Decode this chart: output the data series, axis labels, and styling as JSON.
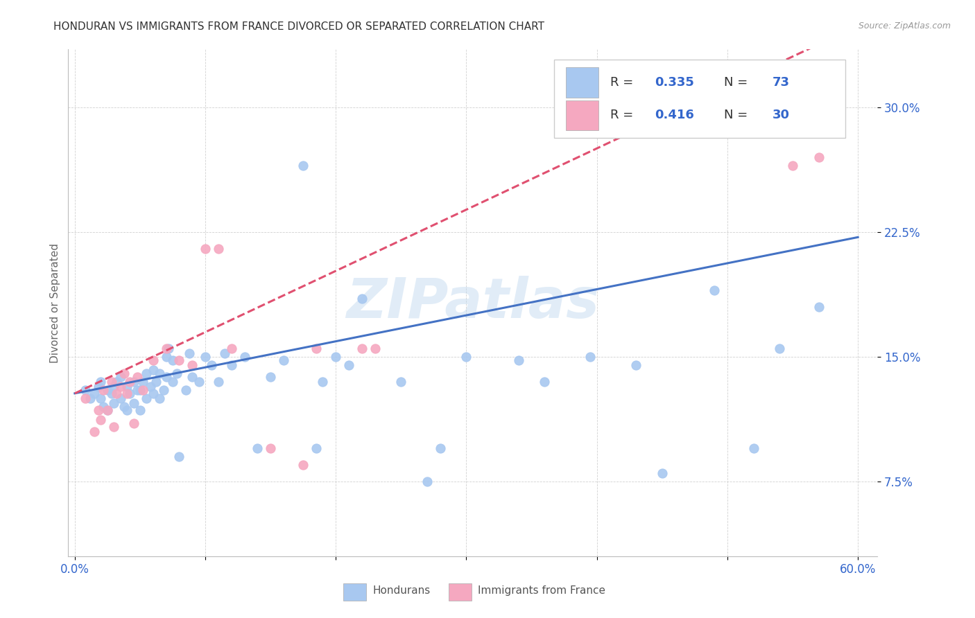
{
  "title": "HONDURAN VS IMMIGRANTS FROM FRANCE DIVORCED OR SEPARATED CORRELATION CHART",
  "source": "Source: ZipAtlas.com",
  "ylabel": "Divorced or Separated",
  "ytick_labels": [
    "7.5%",
    "15.0%",
    "22.5%",
    "30.0%"
  ],
  "ytick_values": [
    0.075,
    0.15,
    0.225,
    0.3
  ],
  "xlim": [
    0.0,
    0.6
  ],
  "ylim": [
    0.03,
    0.335
  ],
  "legend1_r": "0.335",
  "legend1_n": "73",
  "legend2_r": "0.416",
  "legend2_n": "30",
  "blue_color": "#A8C8F0",
  "pink_color": "#F5A8C0",
  "line_blue": "#4472C4",
  "line_pink": "#E05070",
  "text_blue": "#3366CC",
  "watermark": "ZIPatlas",
  "hon_x": [
    0.008,
    0.012,
    0.015,
    0.018,
    0.02,
    0.02,
    0.022,
    0.025,
    0.025,
    0.028,
    0.03,
    0.03,
    0.032,
    0.035,
    0.035,
    0.038,
    0.04,
    0.04,
    0.042,
    0.045,
    0.045,
    0.048,
    0.05,
    0.05,
    0.052,
    0.055,
    0.055,
    0.058,
    0.06,
    0.06,
    0.062,
    0.065,
    0.065,
    0.068,
    0.07,
    0.07,
    0.072,
    0.075,
    0.075,
    0.078,
    0.08,
    0.085,
    0.088,
    0.09,
    0.095,
    0.1,
    0.105,
    0.11,
    0.115,
    0.12,
    0.13,
    0.14,
    0.15,
    0.16,
    0.175,
    0.185,
    0.19,
    0.2,
    0.21,
    0.22,
    0.25,
    0.27,
    0.28,
    0.3,
    0.34,
    0.36,
    0.395,
    0.43,
    0.45,
    0.49,
    0.52,
    0.54,
    0.57
  ],
  "hon_y": [
    0.13,
    0.125,
    0.128,
    0.132,
    0.125,
    0.135,
    0.12,
    0.118,
    0.13,
    0.128,
    0.122,
    0.132,
    0.135,
    0.125,
    0.138,
    0.12,
    0.118,
    0.132,
    0.128,
    0.122,
    0.135,
    0.13,
    0.118,
    0.13,
    0.135,
    0.125,
    0.14,
    0.132,
    0.128,
    0.142,
    0.135,
    0.125,
    0.14,
    0.13,
    0.138,
    0.15,
    0.155,
    0.135,
    0.148,
    0.14,
    0.09,
    0.13,
    0.152,
    0.138,
    0.135,
    0.15,
    0.145,
    0.135,
    0.152,
    0.145,
    0.15,
    0.095,
    0.138,
    0.148,
    0.265,
    0.095,
    0.135,
    0.15,
    0.145,
    0.185,
    0.135,
    0.075,
    0.095,
    0.15,
    0.148,
    0.135,
    0.15,
    0.145,
    0.08,
    0.19,
    0.095,
    0.155,
    0.18
  ],
  "fra_x": [
    0.008,
    0.015,
    0.018,
    0.02,
    0.022,
    0.025,
    0.028,
    0.03,
    0.032,
    0.035,
    0.038,
    0.04,
    0.042,
    0.045,
    0.048,
    0.052,
    0.06,
    0.07,
    0.08,
    0.09,
    0.1,
    0.11,
    0.12,
    0.15,
    0.175,
    0.185,
    0.22,
    0.23,
    0.55,
    0.57
  ],
  "fra_y": [
    0.125,
    0.105,
    0.118,
    0.112,
    0.13,
    0.118,
    0.135,
    0.108,
    0.128,
    0.132,
    0.14,
    0.128,
    0.135,
    0.11,
    0.138,
    0.13,
    0.148,
    0.155,
    0.148,
    0.145,
    0.215,
    0.215,
    0.155,
    0.095,
    0.085,
    0.155,
    0.155,
    0.155,
    0.265,
    0.27
  ],
  "blue_line_x": [
    0.0,
    0.6
  ],
  "blue_line_y": [
    0.128,
    0.222
  ],
  "pink_line_x": [
    0.0,
    0.255
  ],
  "pink_line_y": [
    0.128,
    0.222
  ]
}
